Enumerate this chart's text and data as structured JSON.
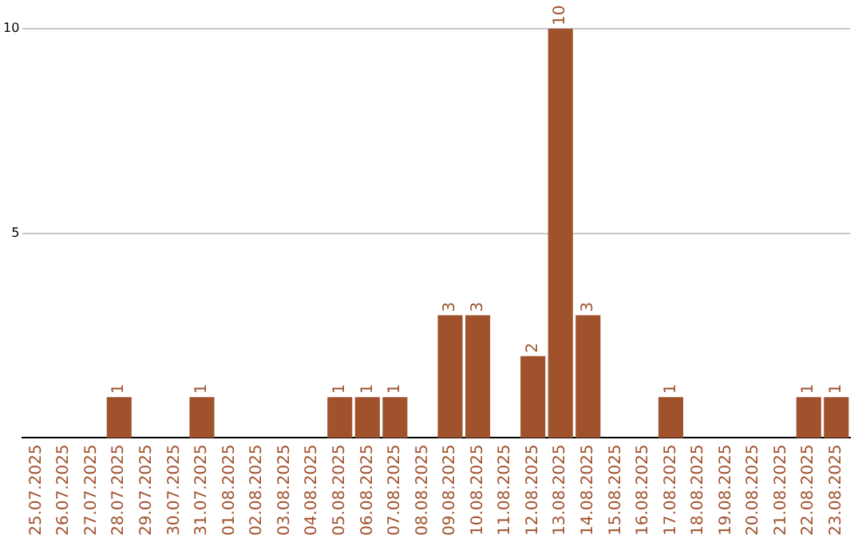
{
  "chart_data": {
    "type": "bar",
    "categories": [
      "25.07.2025",
      "26.07.2025",
      "27.07.2025",
      "28.07.2025",
      "29.07.2025",
      "30.07.2025",
      "31.07.2025",
      "01.08.2025",
      "02.08.2025",
      "03.08.2025",
      "04.08.2025",
      "05.08.2025",
      "06.08.2025",
      "07.08.2025",
      "08.08.2025",
      "09.08.2025",
      "10.08.2025",
      "11.08.2025",
      "12.08.2025",
      "13.08.2025",
      "14.08.2025",
      "15.08.2025",
      "16.08.2025",
      "17.08.2025",
      "18.08.2025",
      "19.08.2025",
      "20.08.2025",
      "21.08.2025",
      "22.08.2025",
      "23.08.2025"
    ],
    "values": [
      null,
      null,
      null,
      1,
      null,
      null,
      1,
      null,
      null,
      null,
      null,
      1,
      1,
      1,
      null,
      3,
      3,
      null,
      2,
      10,
      3,
      null,
      null,
      1,
      null,
      null,
      null,
      null,
      1,
      1
    ],
    "color": "#a0522d",
    "ylim": [
      0,
      10
    ],
    "yticks": [
      5,
      10
    ],
    "grid": "y",
    "data_labels": true
  }
}
